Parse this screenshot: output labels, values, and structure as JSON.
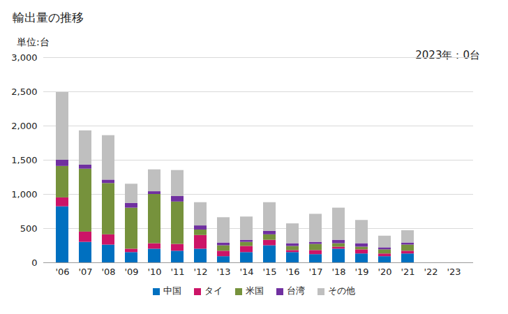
{
  "chart_data": {
    "type": "bar",
    "title": "輸出量の推移",
    "y_label": "単位:台",
    "annotation": "2023年：0台",
    "stacked": true,
    "grid": true,
    "legend": "bottom",
    "categories": [
      "'06",
      "'07",
      "'08",
      "'09",
      "'10",
      "'11",
      "'12",
      "'13",
      "'14",
      "'15",
      "'16",
      "'17",
      "'18",
      "'19",
      "'20",
      "'21",
      "'22",
      "'23"
    ],
    "series": [
      {
        "name": "中国",
        "color": "#0070c0",
        "values": [
          820,
          300,
          260,
          150,
          200,
          170,
          200,
          90,
          150,
          250,
          150,
          120,
          200,
          130,
          90,
          130,
          0,
          0
        ]
      },
      {
        "name": "タイ",
        "color": "#cc1467",
        "values": [
          130,
          150,
          150,
          50,
          80,
          100,
          200,
          80,
          90,
          80,
          30,
          60,
          30,
          60,
          40,
          40,
          0,
          0
        ]
      },
      {
        "name": "米国",
        "color": "#76923c",
        "values": [
          460,
          920,
          750,
          600,
          720,
          620,
          80,
          80,
          60,
          80,
          60,
          90,
          50,
          40,
          60,
          90,
          0,
          0
        ]
      },
      {
        "name": "台湾",
        "color": "#7030a0",
        "values": [
          90,
          60,
          50,
          70,
          40,
          80,
          60,
          40,
          30,
          50,
          40,
          30,
          50,
          50,
          30,
          30,
          0,
          0
        ]
      },
      {
        "name": "その他",
        "color": "#bfbfbf",
        "values": [
          990,
          500,
          650,
          280,
          320,
          380,
          340,
          370,
          340,
          420,
          290,
          410,
          470,
          340,
          170,
          180,
          0,
          0
        ]
      }
    ],
    "ylim": [
      0,
      3000
    ],
    "yticks": [
      0,
      500,
      {
        "value": 1000,
        "label": "1,000"
      },
      {
        "value": 1500,
        "label": "1,500"
      },
      {
        "value": 2000,
        "label": "2,000"
      },
      {
        "value": 2500,
        "label": "2,500"
      },
      {
        "value": 3000,
        "label": "3,000"
      }
    ]
  }
}
